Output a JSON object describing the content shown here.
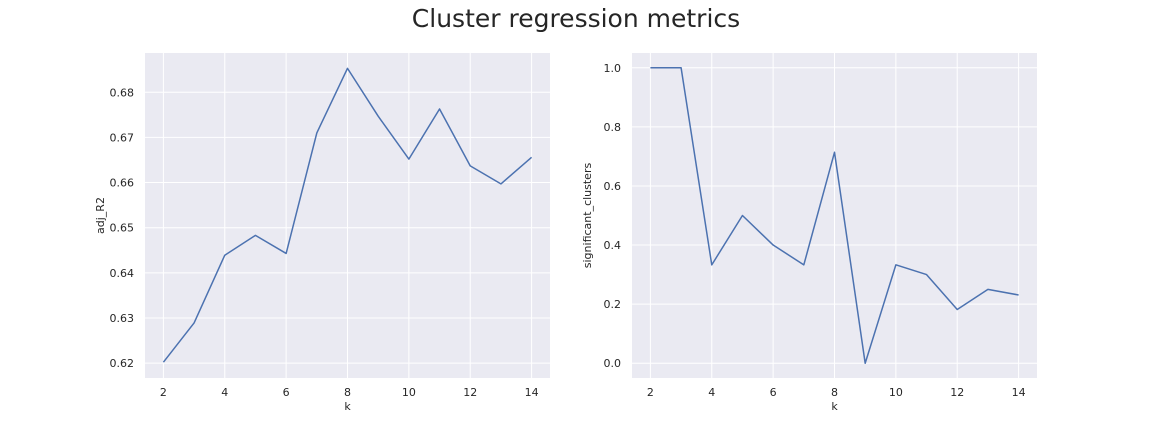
{
  "figure_title": "Cluster regression metrics",
  "colors": {
    "panel_bg": "#eaeaf2",
    "grid": "#ffffff",
    "line": "#4c72b0",
    "text": "#262626"
  },
  "chart_data": [
    {
      "type": "line",
      "xlabel": "k",
      "ylabel": "adj_R2",
      "xlim": [
        1.4,
        14.6
      ],
      "ylim": [
        0.6167,
        0.6887
      ],
      "xticks": [
        2,
        4,
        6,
        8,
        10,
        12,
        14
      ],
      "yticks": [
        0.62,
        0.63,
        0.64,
        0.65,
        0.66,
        0.67,
        0.68
      ],
      "ytick_labels": [
        "0.62",
        "0.63",
        "0.64",
        "0.65",
        "0.66",
        "0.67",
        "0.68"
      ],
      "grid": true,
      "x": [
        2,
        3,
        4,
        5,
        6,
        7,
        8,
        9,
        10,
        11,
        12,
        13,
        14
      ],
      "values": [
        0.6202,
        0.6289,
        0.6439,
        0.6483,
        0.6443,
        0.671,
        0.6853,
        0.6747,
        0.6652,
        0.6763,
        0.6637,
        0.6597,
        0.6656
      ]
    },
    {
      "type": "line",
      "xlabel": "k",
      "ylabel": "significant_clusters",
      "xlim": [
        1.4,
        14.6
      ],
      "ylim": [
        -0.05,
        1.05
      ],
      "xticks": [
        2,
        4,
        6,
        8,
        10,
        12,
        14
      ],
      "yticks": [
        0.0,
        0.2,
        0.4,
        0.6,
        0.8,
        1.0
      ],
      "ytick_labels": [
        "0.0",
        "0.2",
        "0.4",
        "0.6",
        "0.8",
        "1.0"
      ],
      "grid": true,
      "x": [
        2,
        3,
        4,
        5,
        6,
        7,
        8,
        9,
        10,
        11,
        12,
        13,
        14
      ],
      "values": [
        1.0,
        1.0,
        0.333,
        0.5,
        0.4,
        0.333,
        0.714,
        0.0,
        0.333,
        0.3,
        0.182,
        0.25,
        0.231
      ]
    }
  ]
}
